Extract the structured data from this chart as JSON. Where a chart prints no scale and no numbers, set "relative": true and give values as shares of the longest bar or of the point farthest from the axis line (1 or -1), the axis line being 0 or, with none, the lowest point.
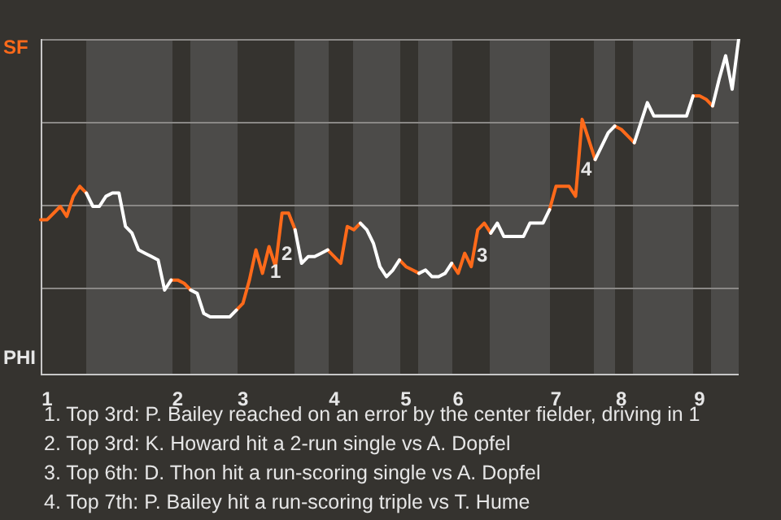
{
  "chart_data": {
    "type": "line",
    "marker": "none",
    "relative": true,
    "categories": [
      null,
      "1",
      null,
      null,
      null,
      null,
      null,
      null,
      null,
      null,
      null,
      null,
      null,
      null,
      null,
      null,
      null,
      null,
      null,
      null,
      null,
      "2",
      null,
      null,
      null,
      null,
      null,
      null,
      null,
      null,
      null,
      "3",
      null,
      null,
      null,
      null,
      null,
      null,
      null,
      null,
      null,
      null,
      null,
      null,
      null,
      "4",
      null,
      null,
      null,
      null,
      null,
      null,
      null,
      null,
      null,
      null,
      "5",
      null,
      null,
      null,
      null,
      null,
      null,
      null,
      "6",
      null,
      null,
      null,
      null,
      null,
      null,
      null,
      null,
      null,
      null,
      null,
      null,
      null,
      null,
      "7",
      null,
      null,
      null,
      null,
      null,
      null,
      null,
      null,
      null,
      "8",
      null,
      null,
      null,
      null,
      null,
      null,
      null,
      null,
      null,
      null,
      null,
      "9",
      null,
      null,
      null,
      null,
      null,
      null
    ],
    "series": [
      {
        "color": "#ffffff",
        "values": [
          null,
          null,
          null,
          null,
          null,
          null,
          null,
          0.54,
          0.5,
          0.5,
          0.53,
          0.54,
          0.54,
          0.44,
          0.42,
          0.37,
          0.36,
          0.35,
          0.34,
          0.25,
          0.28,
          null,
          null,
          0.25,
          0.24,
          0.18,
          0.17,
          0.17,
          0.17,
          0.17,
          0.19,
          null,
          null,
          null,
          null,
          null,
          null,
          null,
          null,
          0.43,
          0.33,
          0.35,
          0.35,
          0.36,
          0.37,
          null,
          null,
          null,
          null,
          0.45,
          0.43,
          0.39,
          0.32,
          0.29,
          0.31,
          0.34,
          null,
          null,
          0.3,
          0.31,
          0.29,
          0.29,
          0.3,
          0.33,
          null,
          null,
          null,
          null,
          null,
          0.42,
          0.45,
          0.41,
          0.41,
          0.41,
          0.41,
          0.45,
          0.45,
          0.45,
          0.49,
          null,
          null,
          null,
          null,
          null,
          null,
          0.64,
          0.68,
          0.72,
          0.74,
          null,
          null,
          0.69,
          0.75,
          0.81,
          0.77,
          0.77,
          0.77,
          0.77,
          0.77,
          0.77,
          0.83,
          null,
          null,
          0.8,
          0.88,
          0.95,
          0.85,
          1.0
        ]
      },
      {
        "color": "#ff6a1a",
        "values": [
          0.46,
          0.46,
          0.48,
          0.5,
          0.47,
          0.53,
          0.56,
          0.54,
          null,
          null,
          null,
          null,
          null,
          null,
          null,
          null,
          null,
          null,
          null,
          null,
          0.28,
          0.28,
          0.27,
          0.25,
          null,
          null,
          null,
          null,
          null,
          null,
          0.19,
          0.21,
          0.28,
          0.37,
          0.3,
          0.38,
          0.32,
          0.48,
          0.48,
          0.43,
          null,
          null,
          null,
          null,
          0.37,
          0.35,
          0.33,
          0.44,
          0.43,
          0.45,
          null,
          null,
          null,
          null,
          null,
          0.34,
          0.32,
          0.31,
          0.3,
          null,
          null,
          null,
          null,
          0.33,
          0.3,
          0.36,
          0.32,
          0.43,
          0.45,
          0.42,
          null,
          null,
          null,
          null,
          null,
          null,
          null,
          null,
          0.49,
          0.56,
          0.56,
          0.56,
          0.53,
          0.76,
          0.7,
          0.64,
          null,
          null,
          0.74,
          0.73,
          0.71,
          0.69,
          null,
          null,
          null,
          null,
          null,
          null,
          null,
          null,
          0.83,
          0.83,
          0.82,
          0.8,
          null,
          null,
          null,
          null
        ]
      }
    ],
    "annotations": [
      "SF",
      "PHI",
      "1",
      "2",
      "3",
      "4",
      "1. Top 3rd: P. Bailey reached on an error by the center fielder, driving in 1",
      "2. Top 3rd: K. Howard hit a 2-run single vs A. Dopfel",
      "3. Top 6th: D. Thon hit a run-scoring single vs A. Dopfel",
      "4. Top 7th: P. Bailey hit a run-scoring triple vs T. Hume"
    ]
  }
}
